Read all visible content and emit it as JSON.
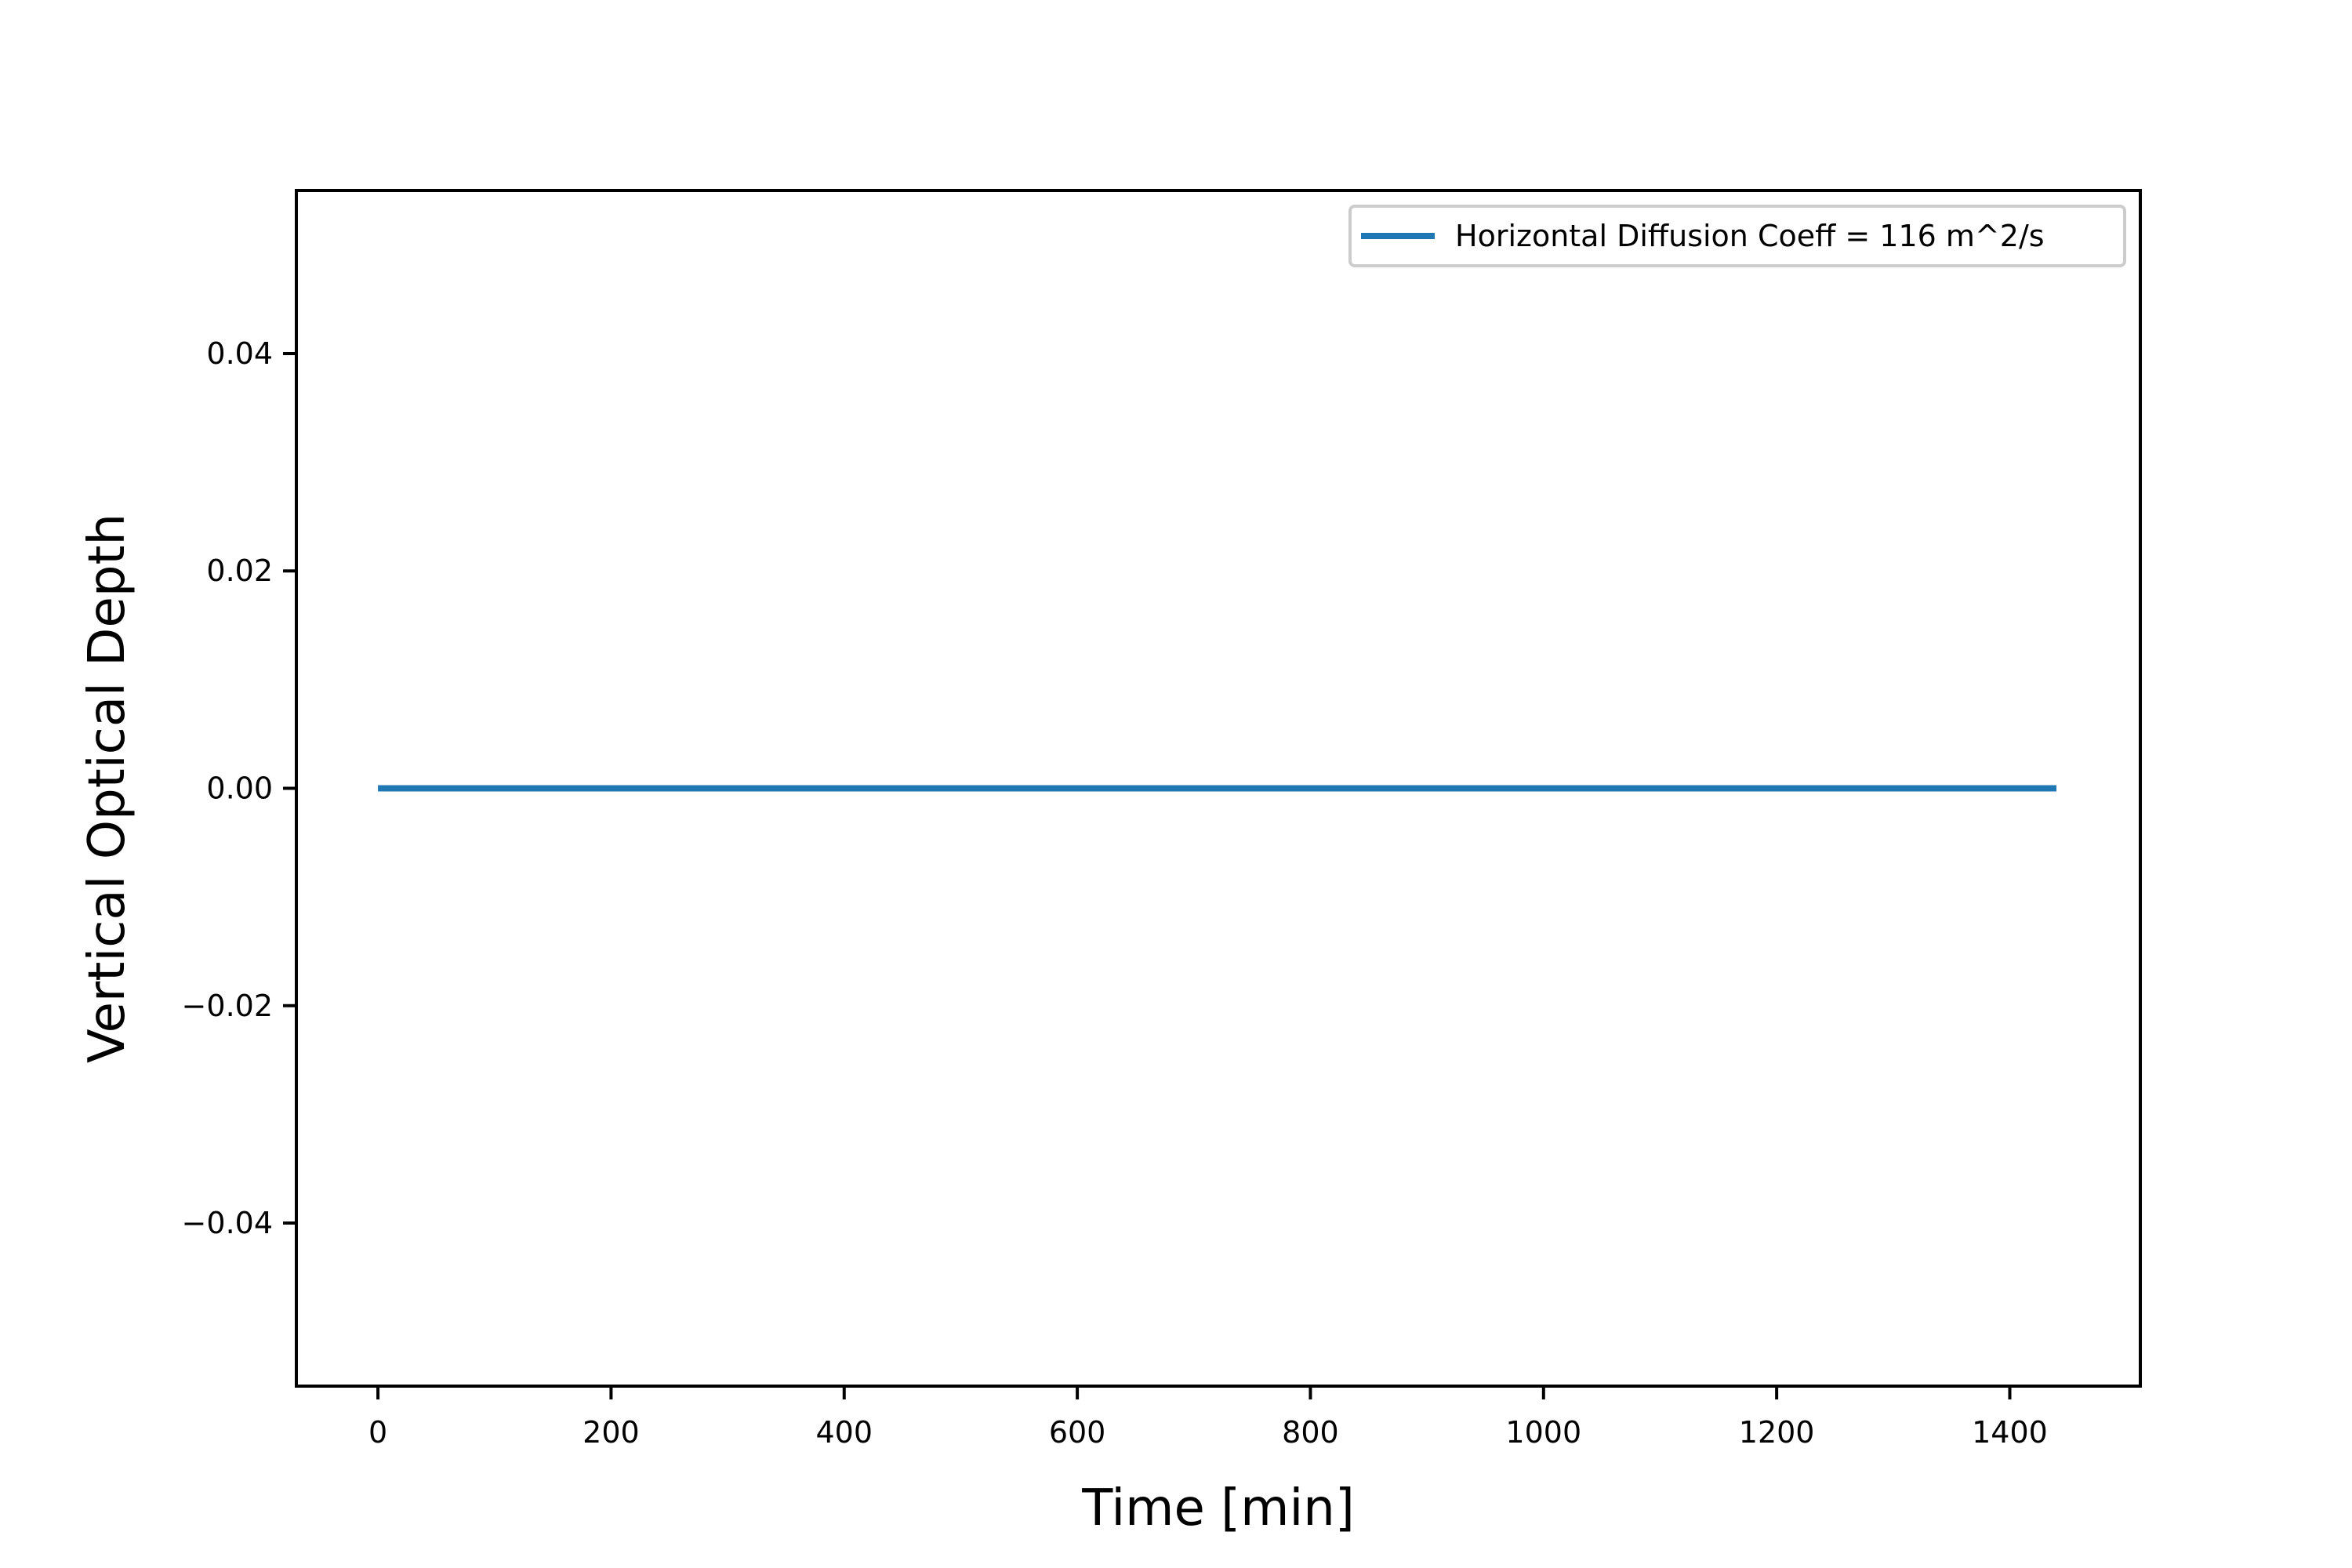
{
  "chart_data": {
    "type": "line",
    "title": "",
    "xlabel": "Time [min]",
    "ylabel": "Vertical Optical Depth",
    "xlim": [
      -70,
      1512
    ],
    "ylim": [
      -0.055,
      0.055
    ],
    "xticks": [
      0,
      200,
      400,
      600,
      800,
      1000,
      1200,
      1400
    ],
    "xtick_labels": [
      "0",
      "200",
      "400",
      "600",
      "800",
      "1000",
      "1200",
      "1400"
    ],
    "yticks": [
      -0.04,
      -0.02,
      0.0,
      0.02,
      0.04
    ],
    "ytick_labels": [
      "−0.04",
      "−0.02",
      "0.00",
      "0.02",
      "0.04"
    ],
    "grid": false,
    "legend_position": "top-right",
    "series": [
      {
        "name": "Horizontal Diffusion Coeff = 116 m^2/s",
        "color": "#1f77b4",
        "x": [
          0,
          1440
        ],
        "y": [
          0.0,
          0.0
        ]
      }
    ]
  }
}
